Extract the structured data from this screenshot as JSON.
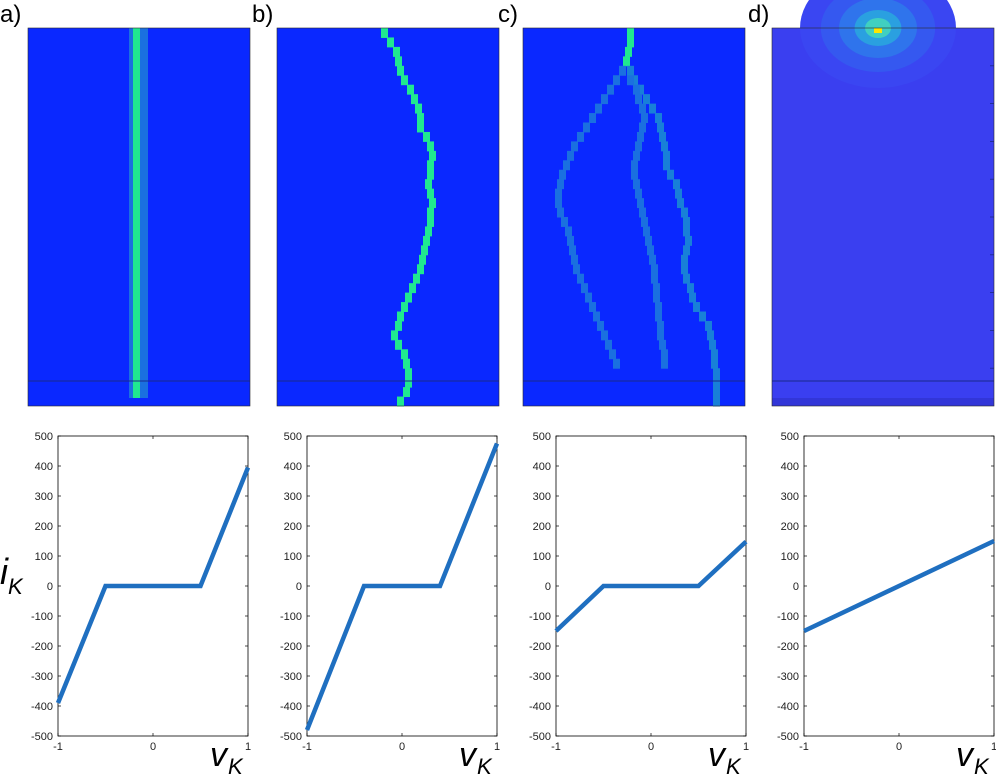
{
  "panels": [
    {
      "label": "a)"
    },
    {
      "label": "b)"
    },
    {
      "label": "c)"
    },
    {
      "label": "d)"
    }
  ],
  "colors": {
    "heatmap_background": "#0a28ff",
    "heatmap_path_bright": "#20e890",
    "heatmap_path_dim": "#1a70e0",
    "heatmap_path_mid": "#1880d8",
    "heatmap_d_background": "#3a3ff0",
    "heatmap_d_hot": "#ffe600",
    "line": "#1f6fc0",
    "axis": "#000000"
  },
  "axis_labels": {
    "ylabel_main": "i",
    "ylabel_sub": "K",
    "xlabel_main": "v",
    "xlabel_sub": "K"
  },
  "chart_data": [
    {
      "type": "heatmap",
      "panel": "a)",
      "description_note": "",
      "path_columns": [
        [
          "bright",
          0.49,
          0.0,
          1.0
        ]
      ]
    },
    {
      "type": "line",
      "panel": "a)",
      "x": [
        -1,
        -0.5,
        0.5,
        1
      ],
      "y": [
        -390,
        0,
        0,
        395
      ],
      "xlim": [
        -1,
        1
      ],
      "ylim": [
        -500,
        500
      ],
      "xticks": [
        "-1",
        "0",
        "1"
      ],
      "yticks": [
        "500",
        "400",
        "300",
        "200",
        "100",
        "0",
        "-100",
        "-200",
        "-300",
        "-400",
        "-500"
      ]
    },
    {
      "type": "line",
      "panel": "b)",
      "x": [
        -1,
        -0.4,
        0.4,
        1
      ],
      "y": [
        -480,
        0,
        0,
        475
      ],
      "xlim": [
        -1,
        1
      ],
      "ylim": [
        -500,
        500
      ],
      "xticks": [
        "-1",
        "0",
        "1"
      ],
      "yticks": [
        "500",
        "400",
        "300",
        "200",
        "100",
        "0",
        "-100",
        "-200",
        "-300",
        "-400",
        "-500"
      ]
    },
    {
      "type": "line",
      "panel": "c)",
      "x": [
        -1,
        -0.5,
        0.5,
        1
      ],
      "y": [
        -150,
        0,
        0,
        148
      ],
      "xlim": [
        -1,
        1
      ],
      "ylim": [
        -500,
        500
      ],
      "xticks": [
        "-1",
        "0",
        "1"
      ],
      "yticks": [
        "500",
        "400",
        "300",
        "200",
        "100",
        "0",
        "-100",
        "-200",
        "-300",
        "-400",
        "-500"
      ]
    },
    {
      "type": "line",
      "panel": "d)",
      "x": [
        -1,
        1
      ],
      "y": [
        -150,
        150
      ],
      "xlim": [
        -1,
        1
      ],
      "ylim": [
        -500,
        500
      ],
      "xticks": [
        "-1",
        "0",
        "1"
      ],
      "yticks": [
        "500",
        "400",
        "300",
        "200",
        "100",
        "0",
        "-100",
        "-200",
        "-300",
        "-400",
        "-500"
      ]
    }
  ]
}
